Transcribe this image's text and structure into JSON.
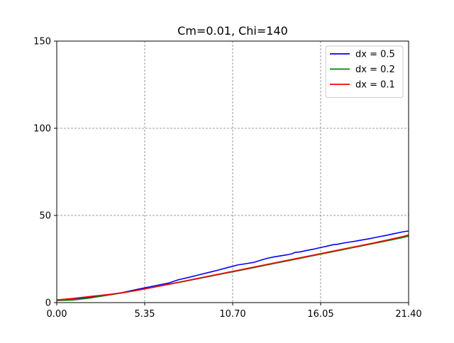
{
  "chart_data": {
    "type": "line",
    "title": "Cm=0.01, Chi=140",
    "xlabel": "",
    "ylabel": "",
    "xlim": [
      0,
      21.4
    ],
    "ylim": [
      0,
      150
    ],
    "xticks": [
      0,
      5.35,
      10.7,
      16.05,
      21.4
    ],
    "xtick_labels": [
      "0.00",
      "5.35",
      "10.70",
      "16.05",
      "21.40"
    ],
    "yticks": [
      0,
      50,
      100,
      150
    ],
    "ytick_labels": [
      "0",
      "50",
      "100",
      "150"
    ],
    "grid": true,
    "legend_position": "top-right",
    "series": [
      {
        "name": "dx = 0.5",
        "color": "#0000ff",
        "x": [
          0,
          1,
          2,
          3,
          4,
          5,
          6,
          6.8,
          7.4,
          8,
          8.6,
          9.2,
          9.8,
          10.4,
          11,
          11.5,
          12,
          12.4,
          12.8,
          13.2,
          13.6,
          14,
          14.3,
          14.5,
          14.8,
          15.2,
          15.6,
          16,
          16.4,
          16.8,
          17.1,
          17.4,
          17.8,
          18.2,
          18.6,
          19,
          19.5,
          20,
          20.5,
          21,
          21.4
        ],
        "y": [
          1.5,
          2.2,
          3.1,
          4.3,
          5.8,
          7.8,
          9.7,
          11.2,
          13.1,
          14.4,
          15.8,
          17.2,
          18.6,
          20.1,
          21.6,
          22.3,
          23.1,
          24.3,
          25.4,
          26.2,
          26.8,
          27.4,
          28.0,
          28.8,
          29.1,
          29.9,
          30.6,
          31.5,
          32.3,
          33.2,
          33.5,
          34.1,
          34.7,
          35.3,
          36.0,
          36.6,
          37.6,
          38.5,
          39.5,
          40.5,
          41.1
        ]
      },
      {
        "name": "dx = 0.2",
        "color": "#008000",
        "x": [
          0,
          1,
          2,
          3,
          4,
          5,
          6,
          7,
          8,
          9,
          10,
          11,
          12,
          13,
          14,
          15,
          16,
          17,
          18,
          19,
          20,
          21,
          21.4
        ],
        "y": [
          1.2,
          1.5,
          2.6,
          4.1,
          5.6,
          7.3,
          9.0,
          10.8,
          12.6,
          14.5,
          16.4,
          18.2,
          20.1,
          22.0,
          23.9,
          25.8,
          27.7,
          29.6,
          31.5,
          33.4,
          35.3,
          37.2,
          38.1
        ]
      },
      {
        "name": "dx = 0.1",
        "color": "#ff0000",
        "x": [
          0,
          1,
          2,
          3,
          4,
          5,
          6,
          7,
          8,
          9,
          10,
          11,
          12,
          13,
          14,
          15,
          16,
          17,
          18,
          19,
          20,
          21,
          21.4
        ],
        "y": [
          1.5,
          2.4,
          3.5,
          4.5,
          5.6,
          7.2,
          9.0,
          10.9,
          12.8,
          14.7,
          16.6,
          18.5,
          20.4,
          22.3,
          24.2,
          26.1,
          28.0,
          29.9,
          31.8,
          33.7,
          35.7,
          37.8,
          38.8
        ]
      }
    ]
  }
}
